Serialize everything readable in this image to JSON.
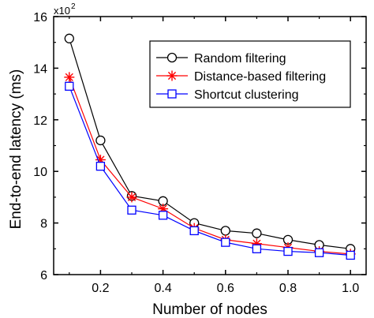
{
  "chart_data": {
    "type": "line",
    "xlabel": "Number of nodes",
    "ylabel": "End-to-end latency (ms)",
    "y_multiplier_label": "x10",
    "y_multiplier_exp": "2",
    "xlim": [
      0.05,
      1.05
    ],
    "ylim": [
      6,
      16
    ],
    "xticks": [
      0.2,
      0.4,
      0.6,
      0.8,
      1.0
    ],
    "xtick_labels": [
      "0.2",
      "0.4",
      "0.6",
      "0.8",
      "1.0"
    ],
    "yticks": [
      6,
      8,
      10,
      12,
      14,
      16
    ],
    "ytick_labels": [
      "6",
      "8",
      "10",
      "12",
      "14",
      "16"
    ],
    "grid": false,
    "legend_position": "top-right",
    "x": [
      0.1,
      0.2,
      0.3,
      0.4,
      0.5,
      0.6,
      0.7,
      0.8,
      0.9,
      1.0
    ],
    "series": [
      {
        "name": "Random filtering",
        "color": "#000000",
        "marker": "circle",
        "values": [
          15.15,
          11.2,
          9.05,
          8.85,
          8.0,
          7.7,
          7.6,
          7.35,
          7.15,
          7.0
        ]
      },
      {
        "name": "Distance-based filtering",
        "color": "#ff0000",
        "marker": "star",
        "values": [
          13.65,
          10.45,
          9.0,
          8.55,
          7.8,
          7.35,
          7.2,
          7.05,
          6.9,
          6.8
        ]
      },
      {
        "name": "Shortcut clustering",
        "color": "#0000ff",
        "marker": "square",
        "values": [
          13.3,
          10.2,
          8.5,
          8.3,
          7.7,
          7.25,
          7.0,
          6.9,
          6.85,
          6.75
        ]
      }
    ]
  }
}
